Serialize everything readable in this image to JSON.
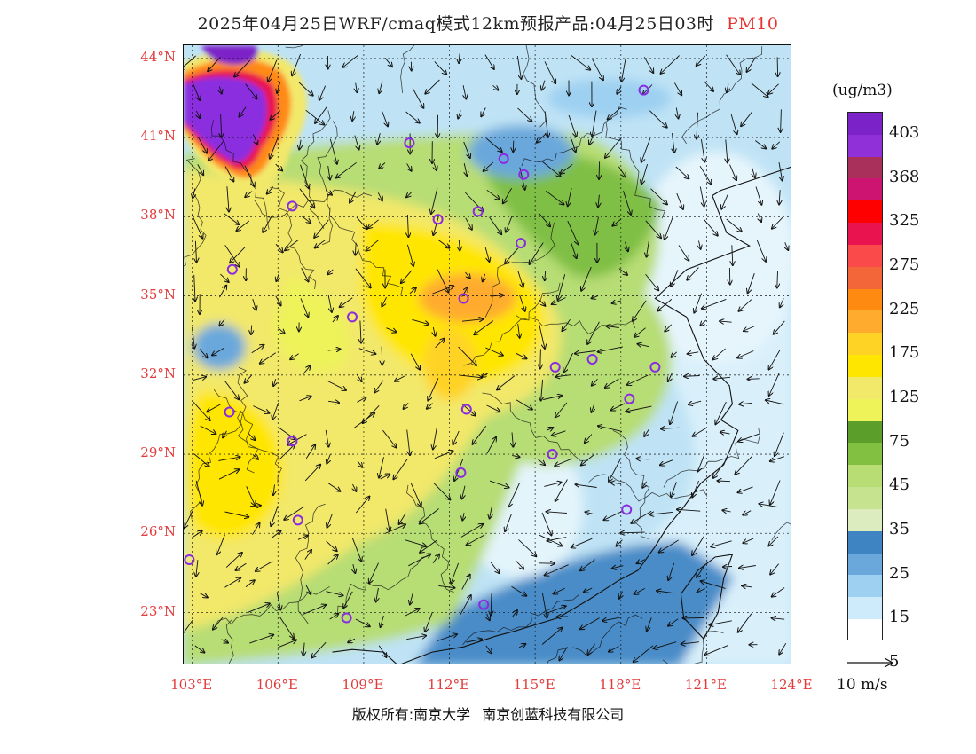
{
  "title": {
    "product": "2025年04月25日WRF/cmaq模式12km预报产品:04月25日03时",
    "pollutant": "PM10"
  },
  "map": {
    "lat_labels": [
      "44°N",
      "41°N",
      "38°N",
      "35°N",
      "32°N",
      "29°N",
      "26°N",
      "23°N"
    ],
    "lon_labels": [
      "103°E",
      "106°E",
      "109°E",
      "112°E",
      "115°E",
      "118°E",
      "121°E",
      "124°E"
    ],
    "lat_range": [
      21,
      44.5
    ],
    "lon_range": [
      102.7,
      124
    ],
    "station_markers": [
      {
        "lon": 118.8,
        "lat": 42.8
      },
      {
        "lon": 110.6,
        "lat": 40.8
      },
      {
        "lon": 113.9,
        "lat": 40.2
      },
      {
        "lon": 114.6,
        "lat": 39.6
      },
      {
        "lon": 106.5,
        "lat": 38.4
      },
      {
        "lon": 111.6,
        "lat": 37.9
      },
      {
        "lon": 113.0,
        "lat": 38.2
      },
      {
        "lon": 114.5,
        "lat": 37.0
      },
      {
        "lon": 104.4,
        "lat": 36.0
      },
      {
        "lon": 112.5,
        "lat": 34.9
      },
      {
        "lon": 108.6,
        "lat": 34.2
      },
      {
        "lon": 117.0,
        "lat": 32.6
      },
      {
        "lon": 115.7,
        "lat": 32.3
      },
      {
        "lon": 119.2,
        "lat": 32.3
      },
      {
        "lon": 118.3,
        "lat": 31.1
      },
      {
        "lon": 112.6,
        "lat": 30.7
      },
      {
        "lon": 104.3,
        "lat": 30.6
      },
      {
        "lon": 106.5,
        "lat": 29.5
      },
      {
        "lon": 115.6,
        "lat": 29.0
      },
      {
        "lon": 112.4,
        "lat": 28.3
      },
      {
        "lon": 106.7,
        "lat": 26.5
      },
      {
        "lon": 118.2,
        "lat": 26.9
      },
      {
        "lon": 102.9,
        "lat": 25.0
      },
      {
        "lon": 113.2,
        "lat": 23.3
      },
      {
        "lon": 108.4,
        "lat": 22.8
      }
    ]
  },
  "colorbar": {
    "units": "(ug/m3)",
    "colors": [
      "#7b22c8",
      "#9030d8",
      "#a8305a",
      "#cc1470",
      "#ff0000",
      "#e9134f",
      "#fb4a4a",
      "#f2663a",
      "#ff8a12",
      "#ffac2e",
      "#ffd325",
      "#ffe600",
      "#f2e86a",
      "#eef35a",
      "#5b9e2a",
      "#82c042",
      "#b7dd74",
      "#c6e38f",
      "#dcecbe",
      "#3f84c2",
      "#6aa8dc",
      "#9dd0f1",
      "#cdebfb",
      "#ffffff"
    ],
    "tick_labels": [
      "403",
      "368",
      "325",
      "275",
      "225",
      "175",
      "125",
      "75",
      "45",
      "35",
      "25",
      "15",
      "5"
    ]
  },
  "wind_reference": {
    "label": "10 m/s"
  },
  "copyright": {
    "left": "版权所有:南京大学",
    "right": "南京创蓝科技有限公司"
  }
}
